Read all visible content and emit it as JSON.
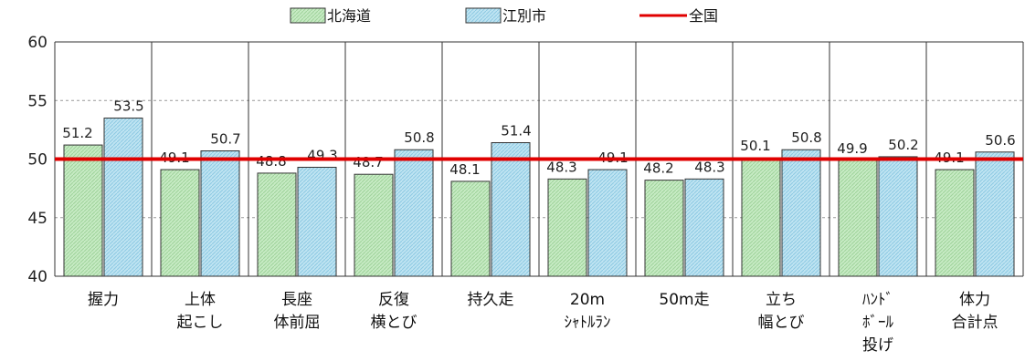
{
  "chart_data": {
    "type": "bar",
    "title": "",
    "xlabel": "",
    "ylabel": "",
    "ylim": [
      40,
      60
    ],
    "yticks": [
      40,
      45,
      50,
      55,
      60
    ],
    "grid": "horizontal-dashed",
    "legend_position": "top",
    "categories": [
      [
        "握力"
      ],
      [
        "上体",
        "起こし"
      ],
      [
        "長座",
        "体前屈"
      ],
      [
        "反復",
        "横とび"
      ],
      [
        "持久走"
      ],
      [
        "20m",
        "ｼｬﾄﾙﾗﾝ"
      ],
      [
        "50m走"
      ],
      [
        "立ち",
        "幅とび"
      ],
      [
        "ﾊﾝﾄﾞ",
        "ﾎﾞｰﾙ",
        "投げ"
      ],
      [
        "体力",
        "合計点"
      ]
    ],
    "series": [
      {
        "name": "北海道",
        "values": [
          51.2,
          49.1,
          48.8,
          48.7,
          48.1,
          48.3,
          48.2,
          50.1,
          49.9,
          49.1
        ]
      },
      {
        "name": "江別市",
        "values": [
          53.5,
          50.7,
          49.3,
          50.8,
          51.4,
          49.1,
          48.3,
          50.8,
          50.2,
          50.6
        ]
      }
    ],
    "reference_line": {
      "name": "全国",
      "value": 50
    },
    "colors": {
      "hokkaido_fill": "#c7ebc4",
      "hokkaido_hatch": "#9ed39a",
      "ebetsu_fill": "#bfe4f2",
      "ebetsu_hatch": "#8cc9e2",
      "national_line": "#e00000",
      "bar_stroke": "#333333",
      "grid": "#999999"
    }
  }
}
